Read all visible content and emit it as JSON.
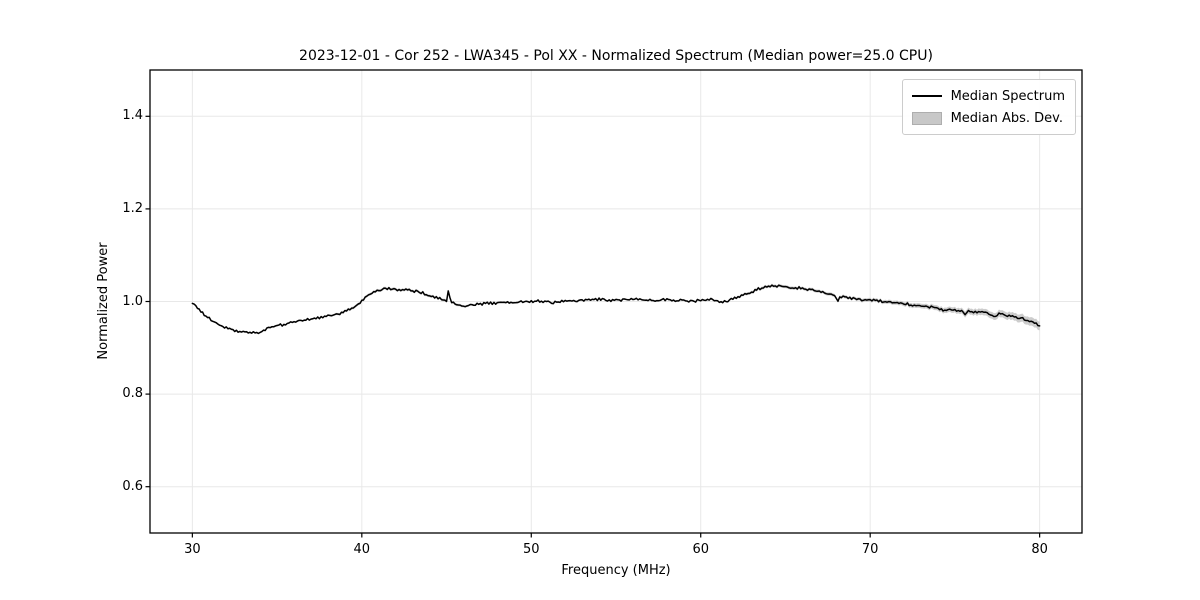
{
  "chart_data": {
    "type": "line",
    "title": "2023-12-01 - Cor 252 - LWA345 - Pol XX - Normalized Spectrum (Median power=25.0 CPU)",
    "xlabel": "Frequency (MHz)",
    "ylabel": "Normalized Power",
    "xlim": [
      27.5,
      82.5
    ],
    "ylim": [
      0.5,
      1.5
    ],
    "xticks": [
      30,
      40,
      50,
      60,
      70,
      80
    ],
    "yticks": [
      0.6,
      0.8,
      1.0,
      1.2,
      1.4
    ],
    "xtick_labels": [
      "30",
      "40",
      "50",
      "60",
      "70",
      "80"
    ],
    "ytick_labels": [
      "0.6",
      "0.8",
      "1.0",
      "1.2",
      "1.4"
    ],
    "grid": true,
    "legend": {
      "position": "upper right",
      "entries": [
        "Median Spectrum",
        "Median Abs. Dev."
      ]
    },
    "colors": {
      "line": "#000000",
      "band": "#c4c4c4",
      "grid": "#e8e8e8",
      "spine": "#000000",
      "text": "#000000",
      "legend_border": "#cccccc"
    },
    "series": [
      {
        "name": "Median Spectrum",
        "kind": "line",
        "color": "#000000",
        "anchors": [
          [
            30.0,
            0.997
          ],
          [
            30.2,
            0.99
          ],
          [
            30.5,
            0.9785
          ],
          [
            31.0,
            0.963
          ],
          [
            31.5,
            0.951
          ],
          [
            32.0,
            0.9425
          ],
          [
            32.5,
            0.937
          ],
          [
            33.0,
            0.9335
          ],
          [
            33.5,
            0.932
          ],
          [
            34.0,
            0.934
          ],
          [
            34.3,
            0.9365
          ],
          [
            34.5,
            0.9435
          ],
          [
            35.0,
            0.9475
          ],
          [
            35.5,
            0.951
          ],
          [
            36.0,
            0.9555
          ],
          [
            36.5,
            0.9595
          ],
          [
            37.0,
            0.9625
          ],
          [
            37.5,
            0.9655
          ],
          [
            38.0,
            0.9685
          ],
          [
            38.5,
            0.9725
          ],
          [
            39.0,
            0.978
          ],
          [
            39.5,
            0.9865
          ],
          [
            39.8,
            0.995
          ],
          [
            40.0,
            1.002
          ],
          [
            40.3,
            1.0125
          ],
          [
            40.5,
            1.017
          ],
          [
            41.0,
            1.0245
          ],
          [
            41.3,
            1.028
          ],
          [
            41.5,
            1.0275
          ],
          [
            42.0,
            1.0265
          ],
          [
            42.5,
            1.0255
          ],
          [
            43.0,
            1.0235
          ],
          [
            43.5,
            1.0195
          ],
          [
            44.0,
            1.0135
          ],
          [
            44.5,
            1.0075
          ],
          [
            45.0,
            1.0015
          ],
          [
            45.1,
            1.0245
          ],
          [
            45.25,
            1.0
          ],
          [
            45.5,
            0.9935
          ],
          [
            46.0,
            0.9905
          ],
          [
            46.5,
            0.9925
          ],
          [
            47.0,
            0.9945
          ],
          [
            47.5,
            0.996
          ],
          [
            48.0,
            0.997
          ],
          [
            48.5,
            0.998
          ],
          [
            49.0,
            0.9975
          ],
          [
            49.5,
            0.999
          ],
          [
            50.0,
            1.0005
          ],
          [
            50.5,
            1.001
          ],
          [
            51.0,
            0.9995
          ],
          [
            51.3,
            0.996
          ],
          [
            51.5,
            0.999
          ],
          [
            52.0,
            1.0005
          ],
          [
            52.5,
            1.001
          ],
          [
            53.0,
            1.0025
          ],
          [
            53.5,
            1.0045
          ],
          [
            54.0,
            1.005
          ],
          [
            54.5,
            1.0035
          ],
          [
            55.0,
            1.002
          ],
          [
            55.5,
            1.004
          ],
          [
            56.0,
            1.0055
          ],
          [
            56.5,
            1.0045
          ],
          [
            57.0,
            1.0035
          ],
          [
            57.5,
            1.003
          ],
          [
            58.0,
            1.0045
          ],
          [
            58.5,
            1.003
          ],
          [
            59.0,
            1.002
          ],
          [
            59.5,
            1.001
          ],
          [
            60.0,
            1.0025
          ],
          [
            60.5,
            1.0045
          ],
          [
            61.0,
            1.0015
          ],
          [
            61.5,
            0.9985
          ],
          [
            61.8,
            1.004
          ],
          [
            62.0,
            1.007
          ],
          [
            62.5,
            1.0135
          ],
          [
            63.0,
            1.021
          ],
          [
            63.5,
            1.028
          ],
          [
            64.0,
            1.0325
          ],
          [
            64.3,
            1.034
          ],
          [
            64.5,
            1.0335
          ],
          [
            65.0,
            1.032
          ],
          [
            65.5,
            1.0295
          ],
          [
            66.0,
            1.0285
          ],
          [
            66.5,
            1.0245
          ],
          [
            67.0,
            1.0215
          ],
          [
            67.5,
            1.0175
          ],
          [
            67.9,
            1.0145
          ],
          [
            68.05,
            1.0015
          ],
          [
            68.3,
            1.011
          ],
          [
            68.5,
            1.0095
          ],
          [
            69.0,
            1.006
          ],
          [
            69.5,
            1.0035
          ],
          [
            70.0,
            1.0025
          ],
          [
            70.5,
            1.001
          ],
          [
            71.0,
            0.999
          ],
          [
            71.5,
            0.997
          ],
          [
            72.0,
            0.9955
          ],
          [
            72.5,
            0.993
          ],
          [
            73.0,
            0.9905
          ],
          [
            73.5,
            0.9885
          ],
          [
            74.0,
            0.9855
          ],
          [
            74.4,
            0.979
          ],
          [
            74.6,
            0.9835
          ],
          [
            75.0,
            0.9815
          ],
          [
            75.4,
            0.979
          ],
          [
            75.6,
            0.9715
          ],
          [
            75.8,
            0.978
          ],
          [
            76.0,
            0.9755
          ],
          [
            76.5,
            0.9775
          ],
          [
            77.0,
            0.974
          ],
          [
            77.4,
            0.966
          ],
          [
            77.6,
            0.9725
          ],
          [
            78.0,
            0.9695
          ],
          [
            78.5,
            0.966
          ],
          [
            79.0,
            0.9625
          ],
          [
            79.5,
            0.9565
          ],
          [
            79.8,
            0.951
          ],
          [
            80.0,
            0.9445
          ]
        ]
      },
      {
        "name": "Median Abs. Dev.",
        "kind": "band",
        "color": "#c4c4c4",
        "half_width_anchors": [
          [
            30.0,
            0.002
          ],
          [
            38.0,
            0.002
          ],
          [
            39.5,
            0.003
          ],
          [
            45.5,
            0.003
          ],
          [
            46.5,
            0.002
          ],
          [
            61.5,
            0.002
          ],
          [
            63.0,
            0.0032
          ],
          [
            69.0,
            0.0035
          ],
          [
            72.0,
            0.0045
          ],
          [
            74.0,
            0.0055
          ],
          [
            76.0,
            0.0065
          ],
          [
            78.0,
            0.0078
          ],
          [
            80.0,
            0.0095
          ]
        ]
      }
    ],
    "noise": {
      "amplitude": 0.0022,
      "alternation": 0.0007,
      "seed": 987654321,
      "step_mhz": 0.1
    }
  }
}
